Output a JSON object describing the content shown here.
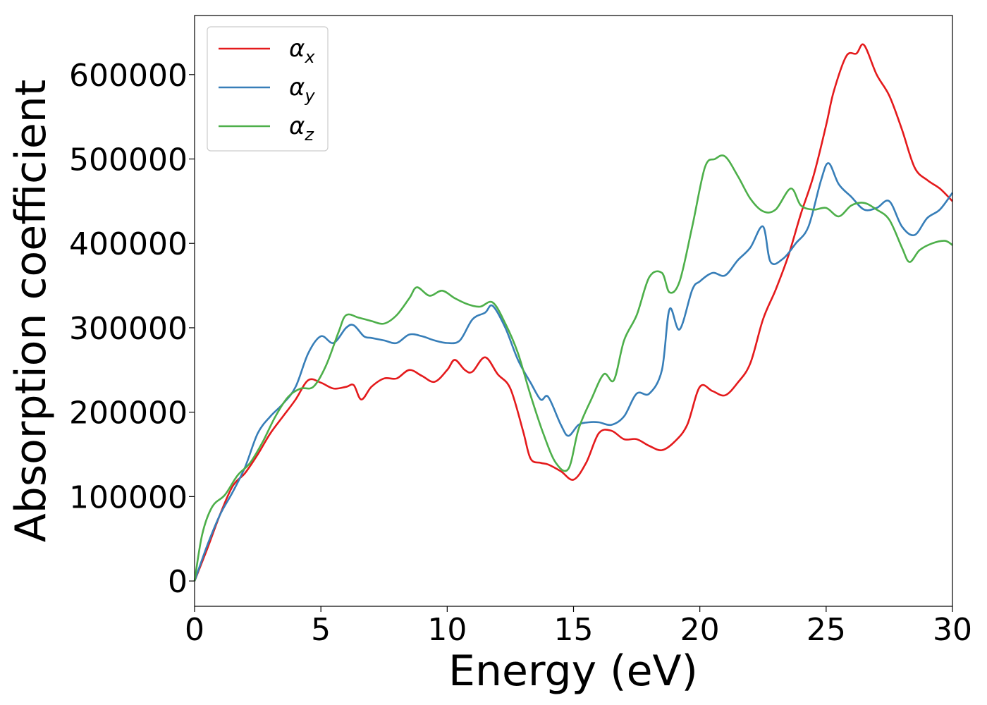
{
  "chart_data": {
    "type": "line",
    "title": "",
    "xlabel": "Energy (eV)",
    "ylabel": "Absorption coefficient",
    "xlim": [
      0,
      30
    ],
    "ylim": [
      -30000,
      670000
    ],
    "xticks": [
      0,
      5,
      10,
      15,
      20,
      25,
      30
    ],
    "xtick_labels": [
      "0",
      "5",
      "10",
      "15",
      "20",
      "25",
      "30"
    ],
    "yticks": [
      0,
      100000,
      200000,
      300000,
      400000,
      500000,
      600000
    ],
    "ytick_labels": [
      "0",
      "100000",
      "200000",
      "300000",
      "400000",
      "500000",
      "600000"
    ],
    "grid": false,
    "legend_position": "top-left",
    "series": [
      {
        "name": "αx",
        "legend_base": "α",
        "legend_sub": "x",
        "color": "#e41a1c",
        "points": [
          [
            0,
            0
          ],
          [
            0.5,
            38000
          ],
          [
            1,
            78000
          ],
          [
            1.5,
            112000
          ],
          [
            2,
            128000
          ],
          [
            2.5,
            150000
          ],
          [
            3,
            175000
          ],
          [
            3.5,
            195000
          ],
          [
            4,
            215000
          ],
          [
            4.5,
            238000
          ],
          [
            5,
            235000
          ],
          [
            5.5,
            228000
          ],
          [
            6,
            230000
          ],
          [
            6.3,
            232000
          ],
          [
            6.6,
            215000
          ],
          [
            7,
            230000
          ],
          [
            7.5,
            240000
          ],
          [
            8,
            240000
          ],
          [
            8.5,
            250000
          ],
          [
            9,
            243000
          ],
          [
            9.5,
            236000
          ],
          [
            10,
            250000
          ],
          [
            10.3,
            262000
          ],
          [
            10.7,
            250000
          ],
          [
            11,
            248000
          ],
          [
            11.5,
            265000
          ],
          [
            12,
            245000
          ],
          [
            12.5,
            228000
          ],
          [
            13,
            178000
          ],
          [
            13.3,
            145000
          ],
          [
            13.7,
            140000
          ],
          [
            14,
            138000
          ],
          [
            14.5,
            130000
          ],
          [
            15,
            120000
          ],
          [
            15.5,
            140000
          ],
          [
            16,
            175000
          ],
          [
            16.5,
            178000
          ],
          [
            17,
            168000
          ],
          [
            17.5,
            168000
          ],
          [
            18,
            160000
          ],
          [
            18.5,
            155000
          ],
          [
            19,
            165000
          ],
          [
            19.5,
            185000
          ],
          [
            20,
            230000
          ],
          [
            20.5,
            225000
          ],
          [
            21,
            220000
          ],
          [
            21.5,
            235000
          ],
          [
            22,
            258000
          ],
          [
            22.5,
            310000
          ],
          [
            23,
            345000
          ],
          [
            23.5,
            385000
          ],
          [
            24,
            435000
          ],
          [
            24.5,
            480000
          ],
          [
            25,
            540000
          ],
          [
            25.3,
            580000
          ],
          [
            25.8,
            622000
          ],
          [
            26.2,
            625000
          ],
          [
            26.5,
            635000
          ],
          [
            27,
            600000
          ],
          [
            27.5,
            575000
          ],
          [
            28,
            535000
          ],
          [
            28.5,
            490000
          ],
          [
            29,
            475000
          ],
          [
            29.5,
            465000
          ],
          [
            30,
            450000
          ]
        ]
      },
      {
        "name": "αy",
        "legend_base": "α",
        "legend_sub": "y",
        "color": "#377eb8",
        "points": [
          [
            0,
            0
          ],
          [
            0.5,
            42000
          ],
          [
            1,
            78000
          ],
          [
            1.5,
            105000
          ],
          [
            2,
            135000
          ],
          [
            2.5,
            175000
          ],
          [
            3,
            195000
          ],
          [
            3.5,
            210000
          ],
          [
            4,
            230000
          ],
          [
            4.5,
            270000
          ],
          [
            5,
            290000
          ],
          [
            5.5,
            282000
          ],
          [
            6,
            300000
          ],
          [
            6.3,
            303000
          ],
          [
            6.7,
            290000
          ],
          [
            7,
            288000
          ],
          [
            7.5,
            285000
          ],
          [
            8,
            282000
          ],
          [
            8.5,
            292000
          ],
          [
            9,
            290000
          ],
          [
            9.5,
            285000
          ],
          [
            10,
            282000
          ],
          [
            10.5,
            285000
          ],
          [
            11,
            310000
          ],
          [
            11.5,
            318000
          ],
          [
            11.8,
            326000
          ],
          [
            12.3,
            300000
          ],
          [
            12.8,
            262000
          ],
          [
            13.3,
            235000
          ],
          [
            13.7,
            215000
          ],
          [
            14,
            218000
          ],
          [
            14.5,
            185000
          ],
          [
            14.8,
            172000
          ],
          [
            15.2,
            185000
          ],
          [
            15.6,
            188000
          ],
          [
            16,
            188000
          ],
          [
            16.5,
            185000
          ],
          [
            17,
            195000
          ],
          [
            17.5,
            222000
          ],
          [
            18,
            222000
          ],
          [
            18.5,
            250000
          ],
          [
            18.8,
            322000
          ],
          [
            19.2,
            298000
          ],
          [
            19.7,
            345000
          ],
          [
            20,
            355000
          ],
          [
            20.5,
            365000
          ],
          [
            21,
            362000
          ],
          [
            21.5,
            380000
          ],
          [
            22,
            395000
          ],
          [
            22.5,
            420000
          ],
          [
            22.8,
            378000
          ],
          [
            23.3,
            382000
          ],
          [
            23.8,
            400000
          ],
          [
            24.3,
            420000
          ],
          [
            24.8,
            475000
          ],
          [
            25.1,
            495000
          ],
          [
            25.5,
            470000
          ],
          [
            26,
            455000
          ],
          [
            26.5,
            440000
          ],
          [
            27,
            442000
          ],
          [
            27.5,
            450000
          ],
          [
            28,
            420000
          ],
          [
            28.5,
            410000
          ],
          [
            29,
            430000
          ],
          [
            29.5,
            440000
          ],
          [
            30,
            460000
          ]
        ]
      },
      {
        "name": "αz",
        "legend_base": "α",
        "legend_sub": "z",
        "color": "#4daf4a",
        "points": [
          [
            0,
            0
          ],
          [
            0.3,
            55000
          ],
          [
            0.7,
            88000
          ],
          [
            1.2,
            102000
          ],
          [
            1.7,
            125000
          ],
          [
            2.2,
            140000
          ],
          [
            2.7,
            165000
          ],
          [
            3.2,
            195000
          ],
          [
            3.7,
            218000
          ],
          [
            4.2,
            228000
          ],
          [
            4.7,
            230000
          ],
          [
            5.2,
            255000
          ],
          [
            5.7,
            295000
          ],
          [
            6,
            315000
          ],
          [
            6.5,
            312000
          ],
          [
            7,
            308000
          ],
          [
            7.5,
            305000
          ],
          [
            8,
            315000
          ],
          [
            8.5,
            335000
          ],
          [
            8.8,
            348000
          ],
          [
            9.3,
            338000
          ],
          [
            9.8,
            344000
          ],
          [
            10.3,
            335000
          ],
          [
            10.8,
            328000
          ],
          [
            11.3,
            325000
          ],
          [
            11.8,
            330000
          ],
          [
            12.3,
            305000
          ],
          [
            12.8,
            270000
          ],
          [
            13.3,
            220000
          ],
          [
            13.8,
            175000
          ],
          [
            14.3,
            140000
          ],
          [
            14.8,
            133000
          ],
          [
            15.2,
            180000
          ],
          [
            15.7,
            215000
          ],
          [
            16.2,
            245000
          ],
          [
            16.6,
            238000
          ],
          [
            17,
            285000
          ],
          [
            17.5,
            315000
          ],
          [
            18,
            360000
          ],
          [
            18.5,
            365000
          ],
          [
            18.8,
            342000
          ],
          [
            19.2,
            355000
          ],
          [
            19.7,
            420000
          ],
          [
            20.2,
            490000
          ],
          [
            20.6,
            500000
          ],
          [
            21,
            503000
          ],
          [
            21.5,
            480000
          ],
          [
            22,
            453000
          ],
          [
            22.5,
            438000
          ],
          [
            23,
            440000
          ],
          [
            23.6,
            465000
          ],
          [
            24,
            445000
          ],
          [
            24.5,
            440000
          ],
          [
            25,
            442000
          ],
          [
            25.5,
            432000
          ],
          [
            26,
            445000
          ],
          [
            26.5,
            448000
          ],
          [
            27,
            440000
          ],
          [
            27.5,
            428000
          ],
          [
            28,
            395000
          ],
          [
            28.3,
            378000
          ],
          [
            28.7,
            392000
          ],
          [
            29.2,
            400000
          ],
          [
            29.7,
            403000
          ],
          [
            30,
            398000
          ]
        ]
      }
    ]
  }
}
